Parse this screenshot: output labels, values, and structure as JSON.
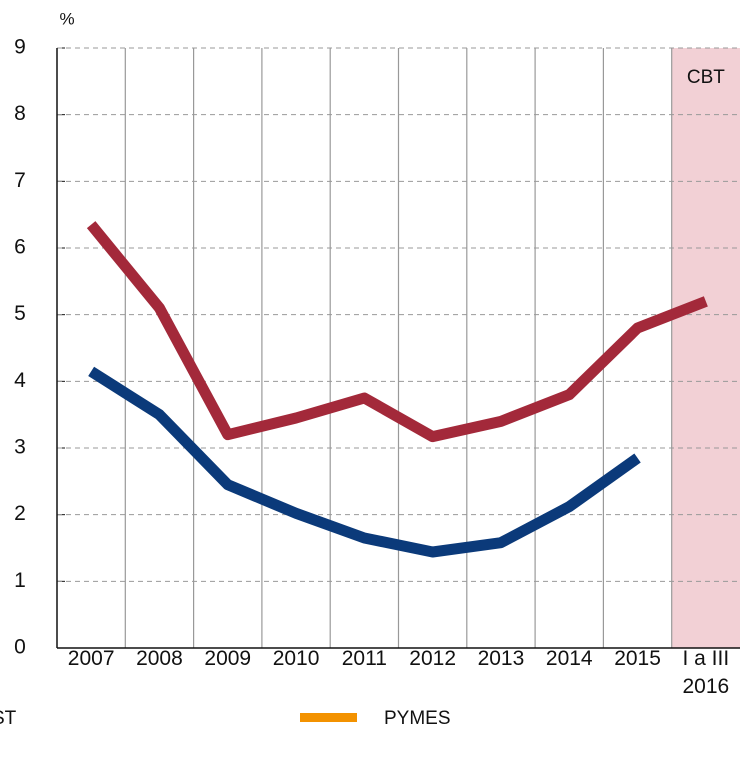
{
  "chart_data": {
    "type": "line",
    "y_label": "%",
    "categories": [
      "2007",
      "2008",
      "2009",
      "2010",
      "2011",
      "2012",
      "2013",
      "2014",
      "2015",
      "I a III\n2016"
    ],
    "series": [
      {
        "color": "#a3293a",
        "values": [
          6.35,
          5.1,
          3.2,
          3.45,
          3.75,
          3.17,
          3.4,
          3.8,
          4.8,
          5.2
        ]
      },
      {
        "color": "#0b3a7a",
        "values": [
          4.15,
          3.5,
          2.45,
          2.02,
          1.65,
          1.44,
          1.58,
          2.12,
          2.85,
          null
        ]
      }
    ],
    "shaded_label": "CBT",
    "shaded_color": "#f2d0d5",
    "legend": [
      {
        "label": "ST",
        "color": "#0b3a7a"
      },
      {
        "label": "PYMES",
        "color": "#f39200"
      }
    ],
    "ylim": [
      0,
      9
    ],
    "yticks": [
      0,
      1,
      2,
      3,
      4,
      5,
      6,
      7,
      8,
      9
    ],
    "grid": true
  }
}
